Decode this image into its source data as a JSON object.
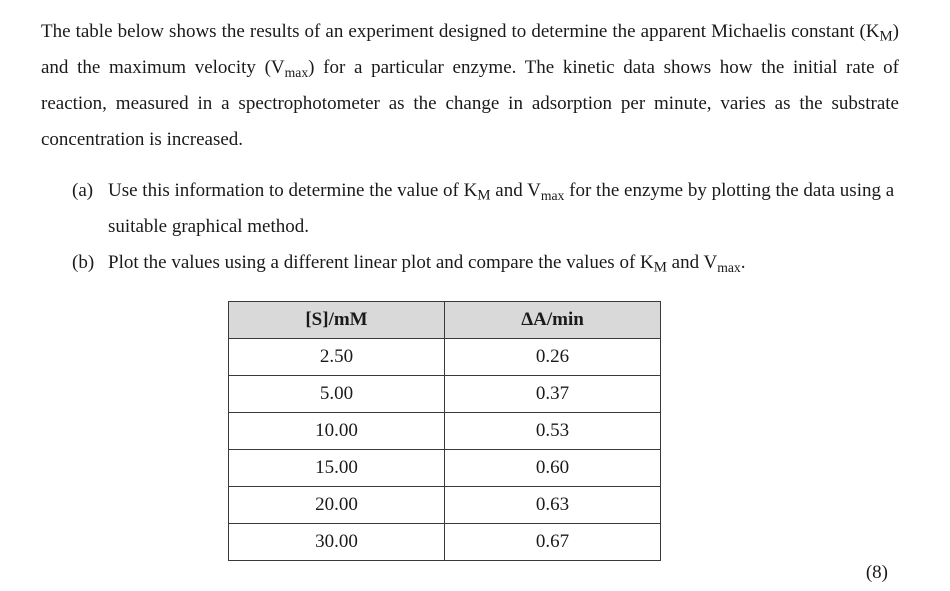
{
  "intro": {
    "t1": "The table below shows the results of an experiment designed to determine the apparent Michaelis constant (K",
    "km_sub": "M",
    "t2": ") and the maximum velocity (V",
    "vmax_sub": "max",
    "t3": ") for a particular enzyme. The kinetic data shows how the initial rate of reaction, measured in a spectrophotometer as the change in adsorption per minute, varies as the substrate concentration is increased."
  },
  "questions": [
    {
      "marker": "(a)",
      "t1": "Use this information to determine the value of K",
      "km_sub": "M",
      "t2": " and V",
      "vmax_sub": "max",
      "t3": " for the enzyme by plotting the data using a suitable graphical method."
    },
    {
      "marker": "(b)",
      "t1": "Plot the values using a different linear plot and compare the values of K",
      "km_sub": "M",
      "t2": " and V",
      "vmax_sub": "max",
      "t3": "."
    }
  ],
  "table": {
    "headers": [
      "[S]/mM",
      "ΔA/min"
    ],
    "rows": [
      [
        "2.50",
        "0.26"
      ],
      [
        "5.00",
        "0.37"
      ],
      [
        "10.00",
        "0.53"
      ],
      [
        "15.00",
        "0.60"
      ],
      [
        "20.00",
        "0.63"
      ],
      [
        "30.00",
        "0.67"
      ]
    ]
  },
  "marks": "(8)"
}
